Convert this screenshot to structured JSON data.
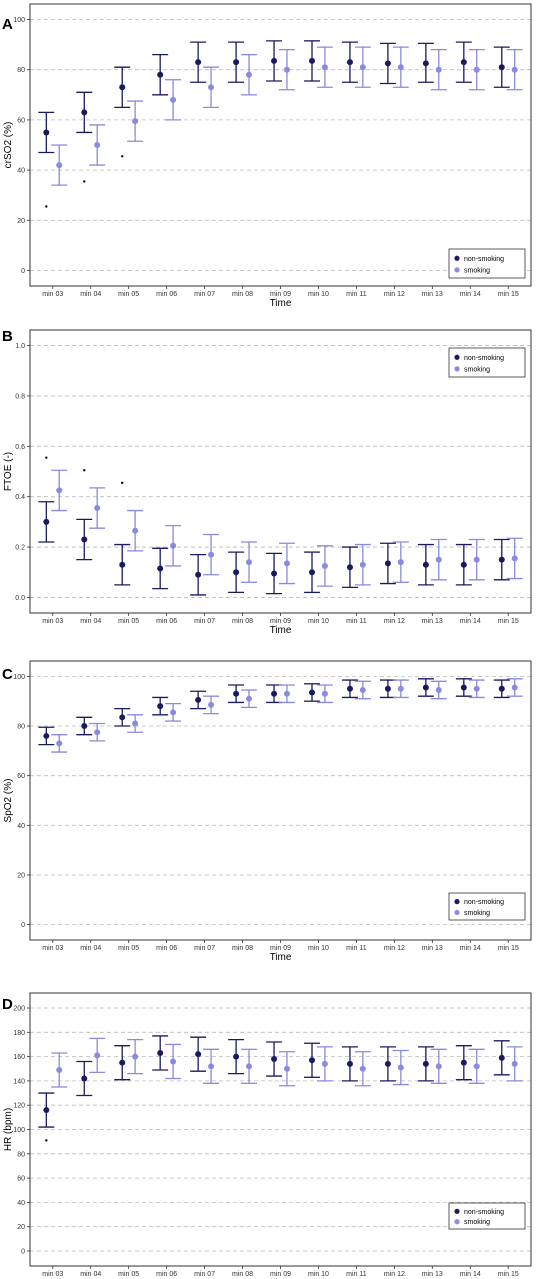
{
  "colors": {
    "non_smoking": "#1a1a5e",
    "smoking": "#8a8ae0",
    "grid": "#bbbbbb",
    "frame": "#333333",
    "outlier": "#000000"
  },
  "chart_data": [
    {
      "panel": "A",
      "type": "scatter",
      "xlabel": "Time",
      "ylabel": "crSO2 (%)",
      "ylim": [
        0,
        100
      ],
      "yticks": [
        0,
        20,
        40,
        60,
        80,
        100
      ],
      "categories": [
        "min 03",
        "min 04",
        "min 05",
        "min 06",
        "min 07",
        "min 08",
        "min 09",
        "min 10",
        "min 11",
        "min 12",
        "min 13",
        "min 14",
        "min 15"
      ],
      "legend": [
        "non-smoking",
        "smoking"
      ],
      "legend_position": "bottom-right",
      "grid": "horizontal-dashed",
      "series": [
        {
          "name": "non-smoking",
          "mean": [
            55,
            63,
            73,
            78,
            83,
            83,
            83.5,
            83.5,
            83,
            82.5,
            82.5,
            83,
            81
          ],
          "lower": [
            47,
            55,
            65,
            70,
            75,
            75,
            75.5,
            75.5,
            75,
            74.5,
            75,
            75,
            73
          ],
          "upper": [
            63,
            71,
            81,
            86,
            91,
            91,
            91.5,
            91.5,
            91,
            90.5,
            90.5,
            91,
            89
          ]
        },
        {
          "name": "smoking",
          "mean": [
            42,
            50,
            59.5,
            68,
            73,
            78,
            80,
            81,
            81,
            81,
            80,
            80,
            80
          ],
          "lower": [
            34,
            42,
            51.5,
            60,
            65,
            70,
            72,
            73,
            73,
            73,
            72,
            72,
            72
          ],
          "upper": [
            50,
            58,
            67.5,
            76,
            81,
            86,
            88,
            89,
            89,
            89,
            88,
            88,
            88
          ]
        }
      ],
      "outliers": [
        {
          "x": "min 03",
          "y": 25.5
        },
        {
          "x": "min 04",
          "y": 35.5
        },
        {
          "x": "min 05",
          "y": 45.5
        }
      ]
    },
    {
      "panel": "B",
      "type": "scatter",
      "xlabel": "Time",
      "ylabel": "FTOE (-)",
      "ylim": [
        0,
        1
      ],
      "yticks": [
        0.0,
        0.2,
        0.4,
        0.6,
        0.8,
        1.0
      ],
      "ytick_labels": [
        "0.0",
        "0.2",
        "0.4",
        "0.6",
        "0.8",
        "1.0"
      ],
      "categories": [
        "min 03",
        "min 04",
        "min 05",
        "min 06",
        "min 07",
        "min 08",
        "min 09",
        "min 10",
        "min 11",
        "min 12",
        "min 13",
        "min 14",
        "min 15"
      ],
      "legend": [
        "non-smoking",
        "smoking"
      ],
      "legend_position": "top-right",
      "grid": "horizontal-dashed",
      "series": [
        {
          "name": "non-smoking",
          "mean": [
            0.3,
            0.23,
            0.13,
            0.115,
            0.09,
            0.1,
            0.095,
            0.1,
            0.12,
            0.135,
            0.13,
            0.13,
            0.15
          ],
          "lower": [
            0.22,
            0.15,
            0.05,
            0.035,
            0.01,
            0.02,
            0.015,
            0.02,
            0.04,
            0.055,
            0.05,
            0.05,
            0.07
          ],
          "upper": [
            0.38,
            0.31,
            0.21,
            0.195,
            0.17,
            0.18,
            0.175,
            0.18,
            0.2,
            0.215,
            0.21,
            0.21,
            0.23
          ]
        },
        {
          "name": "smoking",
          "mean": [
            0.425,
            0.355,
            0.265,
            0.205,
            0.17,
            0.14,
            0.135,
            0.125,
            0.13,
            0.14,
            0.15,
            0.15,
            0.155
          ],
          "lower": [
            0.345,
            0.275,
            0.185,
            0.125,
            0.09,
            0.06,
            0.055,
            0.045,
            0.05,
            0.06,
            0.07,
            0.07,
            0.075
          ],
          "upper": [
            0.505,
            0.435,
            0.345,
            0.285,
            0.25,
            0.22,
            0.215,
            0.205,
            0.21,
            0.22,
            0.23,
            0.23,
            0.235
          ]
        }
      ],
      "outliers": [
        {
          "x": "min 03",
          "y": 0.555
        },
        {
          "x": "min 04",
          "y": 0.505
        },
        {
          "x": "min 05",
          "y": 0.455
        }
      ]
    },
    {
      "panel": "C",
      "type": "scatter",
      "xlabel": "Time",
      "ylabel": "SpO2 (%)",
      "ylim": [
        0,
        100
      ],
      "yticks": [
        0,
        20,
        40,
        60,
        80,
        100
      ],
      "categories": [
        "min 03",
        "min 04",
        "min 05",
        "min 06",
        "min 07",
        "min 08",
        "min 09",
        "min 10",
        "min 11",
        "min 12",
        "min 13",
        "min 14",
        "min 15"
      ],
      "legend": [
        "non-smoking",
        "smoking"
      ],
      "legend_position": "bottom-right",
      "grid": "horizontal-dashed",
      "series": [
        {
          "name": "non-smoking",
          "mean": [
            76,
            80,
            83.5,
            88,
            90.5,
            93,
            93,
            93.5,
            95,
            95,
            95.5,
            95.5,
            95
          ],
          "lower": [
            72.5,
            76.5,
            80,
            84.5,
            87,
            89.5,
            89.5,
            90,
            91.5,
            91.5,
            92,
            92,
            91.5
          ],
          "upper": [
            79.5,
            83.5,
            87,
            91.5,
            94,
            96.5,
            96.5,
            97,
            98.5,
            98.5,
            99,
            99,
            98.5
          ]
        },
        {
          "name": "smoking",
          "mean": [
            73,
            77.5,
            81,
            85.5,
            88.5,
            91,
            93,
            93,
            94.5,
            95,
            94.5,
            95,
            95.5
          ],
          "lower": [
            69.5,
            74,
            77.5,
            82,
            85,
            87.5,
            89.5,
            89.5,
            91,
            91.5,
            91,
            91.5,
            92
          ],
          "upper": [
            76.5,
            81,
            84.5,
            89,
            92,
            94.5,
            96.5,
            96.5,
            98,
            98.5,
            98,
            98.5,
            99
          ]
        }
      ],
      "outliers": []
    },
    {
      "panel": "D",
      "type": "scatter",
      "xlabel": "Time",
      "ylabel": "HR (bpm)",
      "ylim": [
        0,
        200
      ],
      "yticks": [
        0,
        20,
        40,
        60,
        80,
        100,
        120,
        140,
        160,
        180,
        200
      ],
      "categories": [
        "min 03",
        "min 04",
        "min 05",
        "min 06",
        "min 07",
        "min 08",
        "min 09",
        "min 10",
        "min 11",
        "min 12",
        "min 13",
        "min 14",
        "min 15"
      ],
      "legend": [
        "non-smoking",
        "smoking"
      ],
      "legend_position": "bottom-right",
      "grid": "horizontal-dashed",
      "series": [
        {
          "name": "non-smoking",
          "mean": [
            116,
            142,
            155,
            163,
            162,
            160,
            158,
            157,
            154,
            154,
            154,
            155,
            159
          ],
          "lower": [
            102,
            128,
            141,
            149,
            148,
            146,
            144,
            143,
            140,
            140,
            140,
            141,
            145
          ],
          "upper": [
            130,
            156,
            169,
            177,
            176,
            174,
            172,
            171,
            168,
            168,
            168,
            169,
            173
          ]
        },
        {
          "name": "smoking",
          "mean": [
            149,
            161,
            160,
            156,
            152,
            152,
            150,
            154,
            150,
            151,
            152,
            152,
            154
          ],
          "lower": [
            135,
            147,
            146,
            142,
            138,
            138,
            136,
            140,
            136,
            137,
            138,
            138,
            140
          ],
          "upper": [
            163,
            175,
            174,
            170,
            166,
            166,
            164,
            168,
            164,
            165,
            166,
            166,
            168
          ]
        }
      ],
      "outliers": [
        {
          "x": "min 03",
          "y": 91
        }
      ]
    }
  ]
}
